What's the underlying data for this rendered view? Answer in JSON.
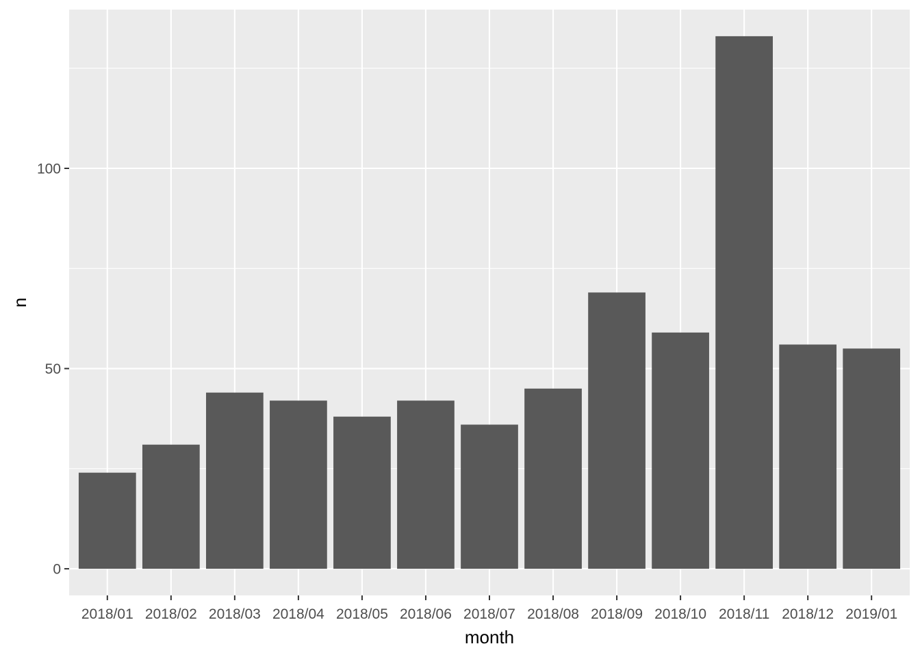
{
  "chart_data": {
    "type": "bar",
    "title": "",
    "xlabel": "month",
    "ylabel": "n",
    "categories": [
      "2018/01",
      "2018/02",
      "2018/03",
      "2018/04",
      "2018/05",
      "2018/06",
      "2018/07",
      "2018/08",
      "2018/09",
      "2018/10",
      "2018/11",
      "2018/12",
      "2019/01"
    ],
    "values": [
      24,
      31,
      44,
      42,
      38,
      42,
      36,
      45,
      69,
      59,
      133,
      56,
      55
    ],
    "ylim": [
      -6.65,
      139.65
    ],
    "yticks": [
      0,
      50,
      100
    ],
    "grid": true,
    "legend": "none",
    "colors": {
      "bar": "#595959",
      "panel": "#ebebeb",
      "grid_major": "#ffffff",
      "grid_minor": "#f7f7f7",
      "tick_text": "#4d4d4d",
      "tick_mark": "#333333",
      "title_text": "#000000"
    }
  }
}
